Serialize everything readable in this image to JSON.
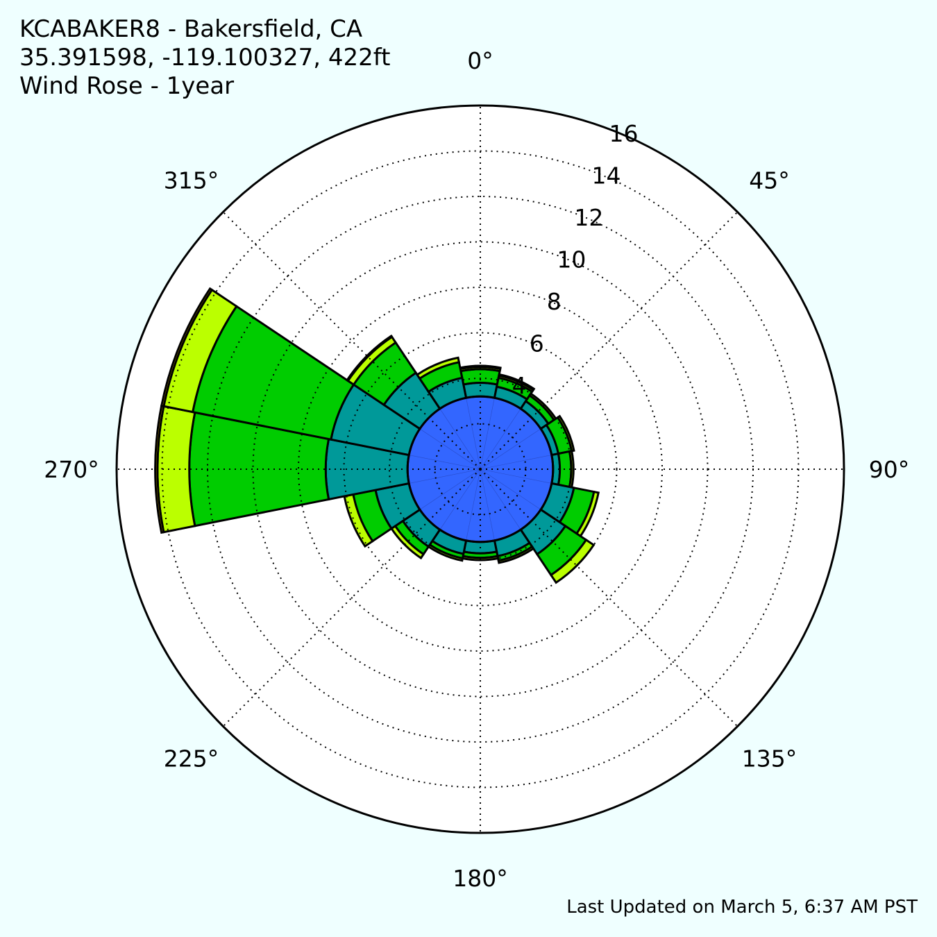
{
  "header": {
    "title_line1": "KCABAKER8 - Bakersfield, CA",
    "title_line2": "35.391598, -119.100327, 422ft",
    "title_line3": "Wind Rose - 1year"
  },
  "footer": {
    "last_updated": "Last Updated on March 5, 6:37 AM PST"
  },
  "chart_data": {
    "type": "windrose",
    "rmax": 16,
    "radial_ticks": [
      "4",
      "6",
      "8",
      "10",
      "12",
      "14",
      "16"
    ],
    "radial_tick_values": [
      4,
      6,
      8,
      10,
      12,
      14,
      16
    ],
    "angle_labels": [
      "0°",
      "45°",
      "90°",
      "135°",
      "180°",
      "225°",
      "270°",
      "315°"
    ],
    "angle_label_values": [
      0,
      45,
      90,
      135,
      180,
      225,
      270,
      315
    ],
    "grid": true,
    "sector_width_deg": 22.5,
    "directions": [
      0,
      22.5,
      45,
      67.5,
      90,
      112.5,
      135,
      157.5,
      180,
      202.5,
      225,
      247.5,
      270,
      292.5,
      315,
      337.5
    ],
    "bin_colors": [
      "#3366ff",
      "#009999",
      "#00cc00",
      "#bbff00",
      "#ffcc00",
      "#ff6600",
      "#ff0000"
    ],
    "series": [
      {
        "values": [
          3.2,
          3.2,
          3.2,
          3.2,
          3.2,
          3.2,
          3.2,
          3.2,
          3.2,
          3.2,
          3.2,
          3.2,
          3.2,
          3.2,
          3.2,
          3.2
        ]
      },
      {
        "values": [
          0.6,
          0.5,
          0.4,
          0.3,
          0.3,
          1.0,
          1.3,
          0.7,
          0.5,
          0.6,
          0.9,
          1.5,
          3.6,
          3.5,
          1.9,
          0.9
        ]
      },
      {
        "values": [
          0.6,
          0.4,
          0.3,
          0.6,
          0.5,
          0.9,
          1.1,
          0.2,
          0.2,
          0.2,
          0.4,
          1.0,
          6.0,
          6.2,
          1.6,
          0.7
        ]
      },
      {
        "values": [
          0.1,
          0.1,
          0.1,
          0.1,
          0.1,
          0.2,
          0.4,
          0.1,
          0.1,
          0.1,
          0.2,
          0.4,
          1.4,
          1.3,
          0.3,
          0.2
        ]
      },
      {
        "values": [
          0.05,
          0.05,
          0.0,
          0.0,
          0.0,
          0.0,
          0.0,
          0.0,
          0.0,
          0.0,
          0.0,
          0.0,
          0.1,
          0.1,
          0.05,
          0.0
        ]
      },
      {
        "values": [
          0.0,
          0.0,
          0.0,
          0.0,
          0.0,
          0.0,
          0.0,
          0.0,
          0.0,
          0.0,
          0.0,
          0.0,
          0.0,
          0.0,
          0.0,
          0.0
        ]
      },
      {
        "values": [
          0.0,
          0.0,
          0.0,
          0.0,
          0.0,
          0.0,
          0.0,
          0.0,
          0.0,
          0.0,
          0.0,
          0.0,
          0.0,
          0.0,
          0.0,
          0.0
        ]
      }
    ]
  }
}
